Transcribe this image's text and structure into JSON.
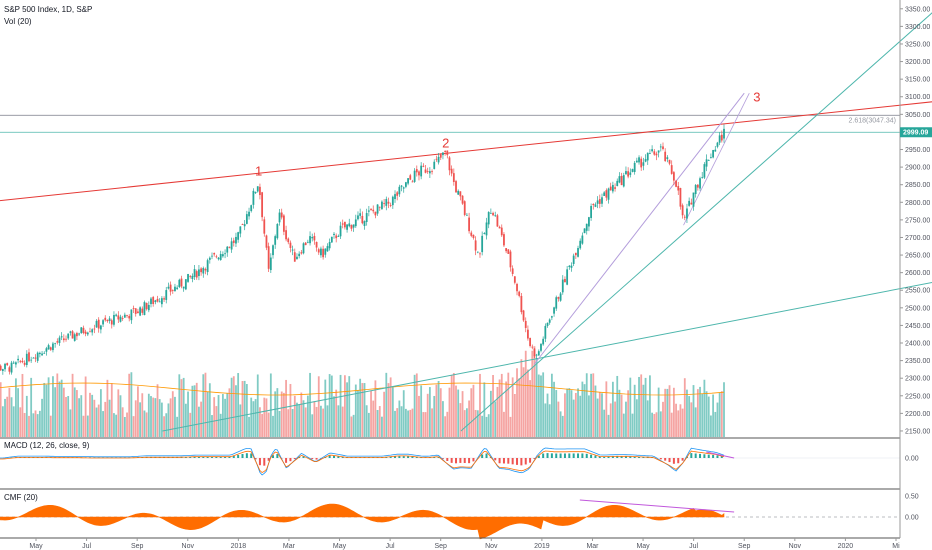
{
  "header": {
    "symbol_line": "S&P 500 Index, 1D, S&P",
    "volume_label": "Vol (20)"
  },
  "indicators": {
    "macd_label": "MACD (12, 26, close, 9)",
    "cmf_label": "CMF (20)"
  },
  "colors": {
    "up": "#26a69a",
    "down": "#ef5350",
    "vol_up": "#80cbc4",
    "vol_down": "#f5a4a2",
    "trendline_red": "#e53935",
    "trendline_teal": "#4db6ac",
    "purple": "#b39ddb",
    "cmf_fill": "#ff6d00",
    "price_tag": "#26a69a"
  },
  "chart_data": {
    "type": "candlestick",
    "price_axis": {
      "ylim": [
        2130,
        3375
      ],
      "ticks": [
        2150,
        2200,
        2250,
        2300,
        2350,
        2400,
        2450,
        2500,
        2550,
        2600,
        2650,
        2700,
        2750,
        2800,
        2850,
        2900,
        2950,
        3000,
        3050,
        3100,
        3150,
        3200,
        3250,
        3300,
        3350
      ],
      "tick_labels": [
        "2150.00",
        "2200.00",
        "2250.00",
        "2300.00",
        "2350.00",
        "2400.00",
        "2450.00",
        "2500.00",
        "2550.00",
        "2600.00",
        "2650.00",
        "2700.00",
        "2750.00",
        "2800.00",
        "2850.00",
        "2900.00",
        "2950.00",
        "3000.00",
        "3050.00",
        "3100.00",
        "3150.00",
        "3200.00",
        "3250.00",
        "3300.00",
        "3350.00"
      ],
      "last_price": 2999.09,
      "last_price_label": "2999.09"
    },
    "time_axis": {
      "labels": [
        "May",
        "Jul",
        "Sep",
        "Nov",
        "2018",
        "Mar",
        "May",
        "Jul",
        "Sep",
        "Nov",
        "2019",
        "Mar",
        "May",
        "Jul",
        "Sep",
        "Nov",
        "2020",
        "Mi"
      ],
      "month_index": [
        4,
        6,
        8,
        10,
        12,
        14,
        16,
        18,
        20,
        22,
        24,
        26,
        28,
        30,
        32,
        34,
        36,
        38
      ]
    },
    "price_path": [
      [
        3,
        2330
      ],
      [
        4.5,
        2390
      ],
      [
        6,
        2440
      ],
      [
        8,
        2490
      ],
      [
        10,
        2580
      ],
      [
        11,
        2640
      ],
      [
        12,
        2700
      ],
      [
        12.8,
        2860
      ],
      [
        13.2,
        2600
      ],
      [
        13.6,
        2770
      ],
      [
        14.2,
        2640
      ],
      [
        14.8,
        2700
      ],
      [
        15.3,
        2650
      ],
      [
        16,
        2720
      ],
      [
        17,
        2760
      ],
      [
        18,
        2800
      ],
      [
        19,
        2880
      ],
      [
        19.8,
        2910
      ],
      [
        20.2,
        2940
      ],
      [
        20.5,
        2860
      ],
      [
        21,
        2760
      ],
      [
        21.5,
        2650
      ],
      [
        22,
        2790
      ],
      [
        22.6,
        2660
      ],
      [
        23,
        2560
      ],
      [
        23.5,
        2400
      ],
      [
        23.8,
        2360
      ],
      [
        24.2,
        2450
      ],
      [
        25,
        2600
      ],
      [
        26,
        2790
      ],
      [
        26.8,
        2840
      ],
      [
        27.5,
        2890
      ],
      [
        28,
        2920
      ],
      [
        28.7,
        2950
      ],
      [
        29.3,
        2860
      ],
      [
        29.6,
        2740
      ],
      [
        30,
        2830
      ],
      [
        30.6,
        2930
      ],
      [
        31.2,
        2999.09
      ]
    ],
    "fib_level": {
      "label": "2.618(3047.34)",
      "value": 3047.34
    },
    "wave_labels": [
      {
        "text": "1",
        "x": 12.8,
        "y": 2865
      },
      {
        "text": "2",
        "x": 20.2,
        "y": 2945
      },
      {
        "text": "3",
        "x": 32.5,
        "y": 3075
      }
    ],
    "trendlines": [
      {
        "name": "upper-red",
        "p1": [
          0,
          2785
        ],
        "p2": [
          40,
          3090
        ]
      },
      {
        "name": "lower-teal",
        "p1": [
          9,
          2150
        ],
        "p2": [
          40,
          2580
        ]
      },
      {
        "name": "steep-teal",
        "p1": [
          20.8,
          2150
        ],
        "p2": [
          40,
          3375
        ]
      },
      {
        "name": "purple-fan",
        "p1": [
          23.7,
          2340
        ],
        "p2": [
          32,
          3110
        ]
      }
    ],
    "macd": {
      "tick_labels": [
        "0.00"
      ],
      "ticks": [
        0
      ]
    },
    "cmf": {
      "tick_labels": [
        "0.50",
        "0.00"
      ],
      "ticks": [
        0.5,
        0
      ]
    }
  }
}
